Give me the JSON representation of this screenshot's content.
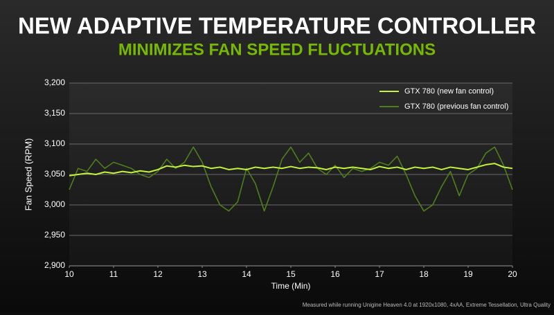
{
  "chart_data": {
    "type": "line",
    "title": "NEW ADAPTIVE TEMPERATURE CONTROLLER",
    "subtitle": "MINIMIZES FAN SPEED FLUCTUATIONS",
    "x_label": "Time (Min)",
    "y_label": "Fan Speed (RPM)",
    "footnote": "Measured while running Unigine Heaven 4.0 at 1920x1080, 4xAA, Extreme Tessellation, Ultra Quality",
    "xlim": [
      10,
      20
    ],
    "xticks": [
      10,
      11,
      12,
      13,
      14,
      15,
      16,
      17,
      18,
      19,
      20
    ],
    "ylim": [
      2900,
      3200
    ],
    "yticks": [
      {
        "value": 2900,
        "label": "2,900"
      },
      {
        "value": 2950,
        "label": "2,950"
      },
      {
        "value": 3000,
        "label": "3,000"
      },
      {
        "value": 3050,
        "label": "3,050"
      },
      {
        "value": 3100,
        "label": "3,100"
      },
      {
        "value": 3150,
        "label": "3,150"
      },
      {
        "value": 3200,
        "label": "3,200"
      }
    ],
    "grid": true,
    "legend": "top-right",
    "x": [
      10,
      10.2,
      10.4,
      10.6,
      10.8,
      11,
      11.2,
      11.4,
      11.6,
      11.8,
      12,
      12.2,
      12.4,
      12.6,
      12.8,
      13,
      13.2,
      13.4,
      13.6,
      13.8,
      14,
      14.2,
      14.4,
      14.6,
      14.8,
      15,
      15.2,
      15.4,
      15.6,
      15.8,
      16,
      16.2,
      16.4,
      16.6,
      16.8,
      17,
      17.2,
      17.4,
      17.6,
      17.8,
      18,
      18.2,
      18.4,
      18.6,
      18.8,
      19,
      19.2,
      19.4,
      19.6,
      19.8,
      20
    ],
    "series": [
      {
        "name": "GTX 780 (new fan control)",
        "color": "#c4f53c",
        "values": [
          3048,
          3050,
          3052,
          3050,
          3054,
          3052,
          3055,
          3053,
          3056,
          3054,
          3058,
          3064,
          3062,
          3065,
          3063,
          3064,
          3060,
          3062,
          3058,
          3060,
          3058,
          3062,
          3060,
          3062,
          3060,
          3063,
          3060,
          3062,
          3061,
          3058,
          3062,
          3060,
          3062,
          3060,
          3058,
          3063,
          3060,
          3062,
          3058,
          3062,
          3060,
          3062,
          3058,
          3062,
          3060,
          3058,
          3062,
          3066,
          3068,
          3062,
          3060
        ]
      },
      {
        "name": "GTX 780 (previous fan control)",
        "color": "#4f7f1c",
        "values": [
          3025,
          3060,
          3055,
          3075,
          3060,
          3070,
          3065,
          3060,
          3050,
          3045,
          3055,
          3075,
          3060,
          3070,
          3095,
          3070,
          3030,
          3000,
          2990,
          3005,
          3060,
          3035,
          2990,
          3030,
          3075,
          3095,
          3070,
          3085,
          3060,
          3050,
          3065,
          3045,
          3060,
          3055,
          3060,
          3070,
          3065,
          3080,
          3050,
          3015,
          2990,
          3000,
          3030,
          3055,
          3015,
          3050,
          3060,
          3085,
          3095,
          3065,
          3025
        ]
      }
    ]
  }
}
